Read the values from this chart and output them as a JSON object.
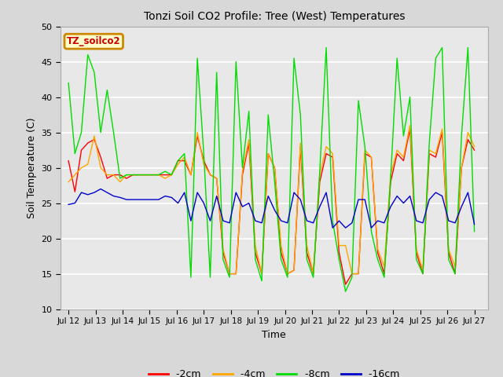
{
  "title": "Tonzi Soil CO2 Profile: Tree (West) Temperatures",
  "xlabel": "Time",
  "ylabel": "Soil Temperature (C)",
  "ylim": [
    10,
    50
  ],
  "yticks": [
    10,
    15,
    20,
    25,
    30,
    35,
    40,
    45,
    50
  ],
  "background_color": "#d8d8d8",
  "plot_bg_color": "#e8e8e8",
  "legend_label": "TZ_soilco2",
  "legend_bg": "#ffffcc",
  "legend_border": "#cc8800",
  "colors": {
    "m2cm": "#ff0000",
    "m4cm": "#ffa500",
    "m8cm": "#00dd00",
    "m16cm": "#0000cc"
  },
  "x_tick_labels": [
    "Jul 12",
    "Jul 13",
    "Jul 14",
    "Jul 15",
    "Jul 16",
    "Jul 17",
    "Jul 18",
    "Jul 19",
    "Jul 20",
    "Jul 21",
    "Jul 22",
    "Jul 23",
    "Jul 24",
    "Jul 25",
    "Jul 26",
    "Jul 27"
  ],
  "x_tick_positions": [
    0,
    1,
    2,
    3,
    4,
    5,
    6,
    7,
    8,
    9,
    10,
    11,
    12,
    13,
    14,
    15
  ],
  "m2cm": [
    31.0,
    26.6,
    32.5,
    33.5,
    34.0,
    31.5,
    28.5,
    29.0,
    29.0,
    28.5,
    29.0,
    29.0,
    29.0,
    29.0,
    29.0,
    29.0,
    29.0,
    31.0,
    31.0,
    29.0,
    34.5,
    31.0,
    29.0,
    28.5,
    18.0,
    15.0,
    15.0,
    29.0,
    33.5,
    18.0,
    15.0,
    32.0,
    30.0,
    18.0,
    15.0,
    15.5,
    33.0,
    18.0,
    15.0,
    28.0,
    32.0,
    31.5,
    18.0,
    13.5,
    15.0,
    15.0,
    32.0,
    31.5,
    18.0,
    15.0,
    28.0,
    32.0,
    31.0,
    35.5,
    18.0,
    15.0,
    32.0,
    31.5,
    35.0,
    18.0,
    15.0,
    30.0,
    34.0,
    32.5
  ],
  "m4cm": [
    28.0,
    29.0,
    30.0,
    30.5,
    34.5,
    30.0,
    29.0,
    29.0,
    28.0,
    29.0,
    29.0,
    29.0,
    29.0,
    29.0,
    29.0,
    28.5,
    29.0,
    30.5,
    31.5,
    29.0,
    35.0,
    30.5,
    29.0,
    28.5,
    18.5,
    15.0,
    15.0,
    29.5,
    34.0,
    19.0,
    15.0,
    32.0,
    30.0,
    19.0,
    15.0,
    15.5,
    33.5,
    19.0,
    15.0,
    29.0,
    33.0,
    32.0,
    19.0,
    19.0,
    15.0,
    15.0,
    32.5,
    31.5,
    18.5,
    16.0,
    29.0,
    32.5,
    31.5,
    36.0,
    18.5,
    15.5,
    32.5,
    32.0,
    35.5,
    18.5,
    16.0,
    30.0,
    35.0,
    33.0
  ],
  "m8cm": [
    42.0,
    32.0,
    35.0,
    46.0,
    43.5,
    35.0,
    41.0,
    35.0,
    28.5,
    29.0,
    29.0,
    29.0,
    29.0,
    29.0,
    29.0,
    29.5,
    29.0,
    31.0,
    32.0,
    14.5,
    45.5,
    32.0,
    14.5,
    43.5,
    17.0,
    14.5,
    45.0,
    30.0,
    38.0,
    17.0,
    14.0,
    37.5,
    28.0,
    17.0,
    14.5,
    45.5,
    37.5,
    17.0,
    14.5,
    29.5,
    47.0,
    22.5,
    17.0,
    12.5,
    14.5,
    39.5,
    33.0,
    21.0,
    17.0,
    14.5,
    28.5,
    45.5,
    34.5,
    40.0,
    17.0,
    15.0,
    33.5,
    45.5,
    47.0,
    17.0,
    15.0,
    34.5,
    47.0,
    21.0
  ],
  "m16cm": [
    24.8,
    25.0,
    26.5,
    26.2,
    26.5,
    27.0,
    26.5,
    26.0,
    25.8,
    25.5,
    25.5,
    25.5,
    25.5,
    25.5,
    25.5,
    26.0,
    25.8,
    25.0,
    26.5,
    22.5,
    26.5,
    25.0,
    22.5,
    26.0,
    22.5,
    22.2,
    26.5,
    24.5,
    25.0,
    22.5,
    22.2,
    26.0,
    24.0,
    22.5,
    22.2,
    26.5,
    25.5,
    22.5,
    22.2,
    24.5,
    26.5,
    21.5,
    22.5,
    21.5,
    22.2,
    25.5,
    25.5,
    21.5,
    22.5,
    22.2,
    24.5,
    26.0,
    25.0,
    26.0,
    22.5,
    22.2,
    25.5,
    26.5,
    26.0,
    22.5,
    22.2,
    24.5,
    26.5,
    22.0
  ]
}
